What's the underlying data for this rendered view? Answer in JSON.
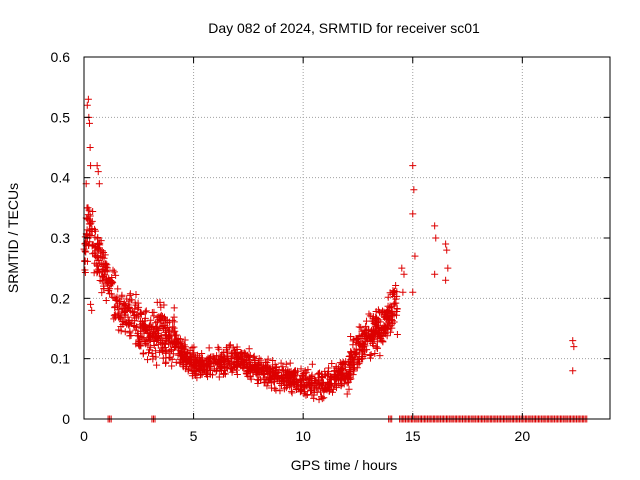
{
  "chart_data": {
    "type": "scatter",
    "title": "Day 082 of 2024, SRMTID for receiver sc01",
    "xlabel": "GPS time / hours",
    "ylabel": "SRMTID / TECUs",
    "xlim": [
      0,
      24
    ],
    "ylim": [
      0,
      0.6
    ],
    "x_ticks": [
      0,
      5,
      10,
      15,
      20
    ],
    "y_ticks": [
      0,
      0.1,
      0.2,
      0.3,
      0.4,
      0.5,
      0.6
    ],
    "x_tick_labels": [
      "0",
      "5",
      "10",
      "15",
      "20"
    ],
    "y_tick_labels": [
      "0",
      "0.1",
      "0.2",
      "0.3",
      "0.4",
      "0.5",
      "0.6"
    ],
    "grid": true,
    "marker": "+",
    "series": [
      {
        "name": "sc01",
        "color": "#dd0000",
        "profile": {
          "x": [
            0.0,
            0.2,
            0.5,
            1.0,
            1.5,
            2.0,
            2.5,
            3.0,
            3.5,
            4.0,
            5.0,
            6.0,
            7.0,
            8.0,
            9.0,
            10.0,
            11.0,
            11.5,
            12.0,
            12.5,
            13.0,
            13.5,
            14.0,
            14.3
          ],
          "y": [
            0.27,
            0.32,
            0.28,
            0.24,
            0.19,
            0.17,
            0.15,
            0.13,
            0.15,
            0.13,
            0.09,
            0.09,
            0.1,
            0.08,
            0.07,
            0.06,
            0.06,
            0.07,
            0.08,
            0.12,
            0.14,
            0.15,
            0.17,
            0.2
          ]
        },
        "outliers": {
          "x": [
            0.15,
            0.2,
            0.22,
            0.25,
            0.28,
            0.3,
            0.1,
            0.6,
            0.65,
            0.7,
            0.3,
            0.35,
            14.5,
            14.55,
            14.6,
            14.3,
            15.0,
            15.05,
            15.0,
            15.1,
            15.0,
            16.0,
            16.05,
            16.0,
            16.5,
            16.55,
            16.6,
            16.5,
            22.3,
            22.35,
            22.3
          ],
          "y": [
            0.52,
            0.53,
            0.5,
            0.49,
            0.45,
            0.42,
            0.39,
            0.42,
            0.41,
            0.39,
            0.19,
            0.18,
            0.25,
            0.21,
            0.24,
            0.14,
            0.42,
            0.38,
            0.34,
            0.27,
            0.21,
            0.32,
            0.3,
            0.24,
            0.29,
            0.28,
            0.25,
            0.23,
            0.13,
            0.12,
            0.08
          ]
        },
        "zero_points_x": [
          1.1,
          3.1,
          13.9,
          14.4,
          14.6,
          14.8,
          15.0,
          15.2,
          15.4,
          15.6,
          15.8,
          16.0,
          16.2,
          16.4,
          16.6,
          16.8,
          17.0,
          17.2,
          17.4,
          17.6,
          17.8,
          18.0,
          18.2,
          18.4,
          18.6,
          18.8,
          19.0,
          19.2,
          19.4,
          19.6,
          19.8,
          20.0,
          20.2,
          20.4,
          20.6,
          20.8,
          21.0,
          21.2,
          21.4,
          21.6,
          21.8,
          22.0,
          22.2,
          22.4,
          22.6,
          22.8
        ]
      }
    ]
  }
}
